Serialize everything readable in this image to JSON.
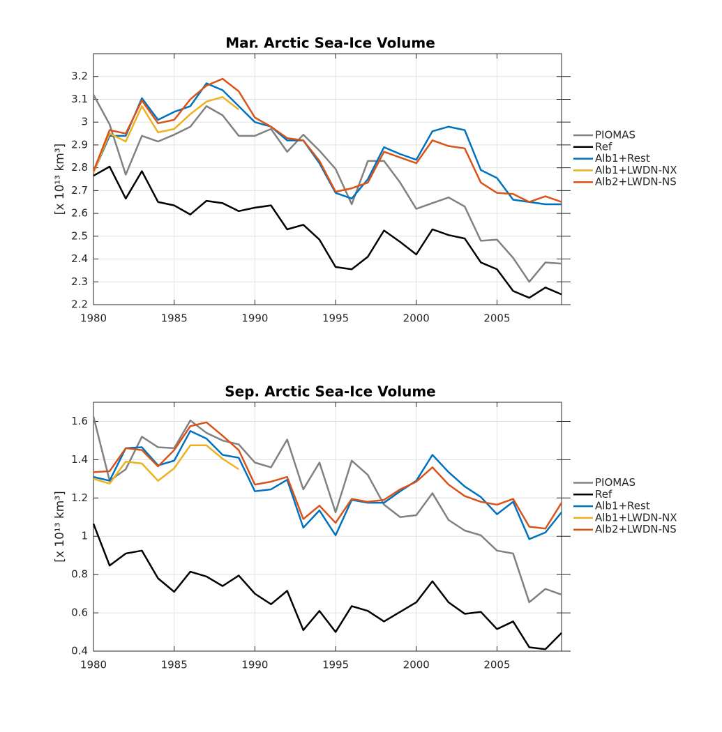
{
  "chart_data": [
    {
      "type": "line",
      "title": "Mar. Arctic Sea-Ice Volume",
      "ylabel": "[x 10¹³ km³]",
      "x": [
        1980,
        1981,
        1982,
        1983,
        1984,
        1985,
        1986,
        1987,
        1988,
        1989,
        1990,
        1991,
        1992,
        1993,
        1994,
        1995,
        1996,
        1997,
        1998,
        1999,
        2000,
        2001,
        2002,
        2003,
        2004,
        2005,
        2006,
        2007,
        2008,
        2009
      ],
      "xlim": [
        1980,
        2009
      ],
      "xticks": [
        1980,
        1985,
        1990,
        1995,
        2000,
        2005
      ],
      "ylim": [
        2.2,
        3.3
      ],
      "yticks": [
        2.2,
        2.3,
        2.4,
        2.5,
        2.6,
        2.7,
        2.8,
        2.9,
        3,
        3.1,
        3.2
      ],
      "grid": true,
      "legend": "eastoutside",
      "series": [
        {
          "name": "PIOMAS",
          "color": "#808080",
          "values": [
            3.12,
            2.99,
            2.77,
            2.94,
            2.915,
            2.945,
            2.98,
            3.07,
            3.03,
            2.94,
            2.94,
            2.97,
            2.87,
            2.945,
            2.875,
            2.795,
            2.64,
            2.83,
            2.83,
            2.735,
            2.62,
            2.645,
            2.67,
            2.63,
            2.48,
            2.485,
            2.405,
            2.3,
            2.385,
            2.38
          ]
        },
        {
          "name": "Ref",
          "color": "#000000",
          "values": [
            2.765,
            2.805,
            2.665,
            2.785,
            2.65,
            2.635,
            2.595,
            2.655,
            2.645,
            2.61,
            2.625,
            2.635,
            2.53,
            2.55,
            2.485,
            2.365,
            2.355,
            2.41,
            2.525,
            2.475,
            2.42,
            2.53,
            2.505,
            2.49,
            2.385,
            2.355,
            2.26,
            2.23,
            2.275,
            2.245
          ]
        },
        {
          "name": "Alb1+Rest",
          "color": "#0072BD",
          "values": [
            2.78,
            2.94,
            2.94,
            3.105,
            3.01,
            3.045,
            3.07,
            3.17,
            3.14,
            3.07,
            3.0,
            2.98,
            2.92,
            2.92,
            2.82,
            2.69,
            2.665,
            2.75,
            2.89,
            2.86,
            2.835,
            2.96,
            2.98,
            2.965,
            2.79,
            2.755,
            2.66,
            2.65,
            2.64,
            2.64
          ]
        },
        {
          "name": "Alb1+LWDN-NX",
          "color": "#EDB120",
          "values": [
            2.78,
            2.95,
            2.915,
            3.07,
            2.955,
            2.97,
            3.035,
            3.09,
            3.11,
            3.055,
            null,
            null,
            null,
            null,
            null,
            null,
            null,
            null,
            null,
            null,
            null,
            null,
            null,
            null,
            null,
            null,
            null,
            null,
            null,
            null
          ]
        },
        {
          "name": "Alb2+LWDN-NS",
          "color": "#D95319",
          "values": [
            2.785,
            2.965,
            2.95,
            3.095,
            2.995,
            3.01,
            3.1,
            3.16,
            3.19,
            3.135,
            3.02,
            2.98,
            2.93,
            2.92,
            2.83,
            2.695,
            2.71,
            2.735,
            2.87,
            2.845,
            2.82,
            2.92,
            2.895,
            2.885,
            2.735,
            2.69,
            2.685,
            2.65,
            2.675,
            2.65
          ]
        }
      ]
    },
    {
      "type": "line",
      "title": "Sep. Arctic Sea-Ice Volume",
      "ylabel": "[x 10¹³ km³]",
      "x": [
        1980,
        1981,
        1982,
        1983,
        1984,
        1985,
        1986,
        1987,
        1988,
        1989,
        1990,
        1991,
        1992,
        1993,
        1994,
        1995,
        1996,
        1997,
        1998,
        1999,
        2000,
        2001,
        2002,
        2003,
        2004,
        2005,
        2006,
        2007,
        2008,
        2009
      ],
      "xlim": [
        1980,
        2009
      ],
      "xticks": [
        1980,
        1985,
        1990,
        1995,
        2000,
        2005
      ],
      "ylim": [
        0.4,
        1.7
      ],
      "yticks": [
        0.4,
        0.6,
        0.8,
        1,
        1.2,
        1.4,
        1.6
      ],
      "grid": true,
      "legend": "eastoutside",
      "series": [
        {
          "name": "PIOMAS",
          "color": "#808080",
          "values": [
            1.625,
            1.29,
            1.35,
            1.52,
            1.465,
            1.46,
            1.605,
            1.54,
            1.5,
            1.48,
            1.385,
            1.36,
            1.505,
            1.245,
            1.385,
            1.125,
            1.395,
            1.32,
            1.165,
            1.1,
            1.11,
            1.225,
            1.085,
            1.03,
            1.005,
            0.925,
            0.91,
            0.655,
            0.725,
            0.695
          ]
        },
        {
          "name": "Ref",
          "color": "#000000",
          "values": [
            1.065,
            0.847,
            0.91,
            0.925,
            0.78,
            0.71,
            0.815,
            0.79,
            0.74,
            0.795,
            0.7,
            0.645,
            0.715,
            0.51,
            0.61,
            0.5,
            0.635,
            0.61,
            0.555,
            0.605,
            0.655,
            0.765,
            0.655,
            0.595,
            0.605,
            0.515,
            0.555,
            0.42,
            0.41,
            0.495
          ]
        },
        {
          "name": "Alb1+Rest",
          "color": "#0072BD",
          "values": [
            1.31,
            1.29,
            1.46,
            1.465,
            1.37,
            1.395,
            1.55,
            1.51,
            1.425,
            1.41,
            1.235,
            1.245,
            1.295,
            1.045,
            1.135,
            1.005,
            1.19,
            1.175,
            1.175,
            1.235,
            1.29,
            1.425,
            1.335,
            1.26,
            1.205,
            1.115,
            1.18,
            0.985,
            1.02,
            1.125
          ]
        },
        {
          "name": "Alb1+LWDN-NX",
          "color": "#EDB120",
          "values": [
            1.3,
            1.275,
            1.39,
            1.38,
            1.29,
            1.355,
            1.475,
            1.475,
            1.405,
            1.35,
            null,
            null,
            null,
            null,
            null,
            null,
            null,
            null,
            null,
            null,
            null,
            null,
            null,
            null,
            null,
            null,
            null,
            null,
            null,
            null
          ]
        },
        {
          "name": "Alb2+LWDN-NS",
          "color": "#D95319",
          "values": [
            1.335,
            1.34,
            1.46,
            1.45,
            1.365,
            1.45,
            1.575,
            1.595,
            1.525,
            1.45,
            1.27,
            1.285,
            1.31,
            1.09,
            1.16,
            1.07,
            1.195,
            1.18,
            1.19,
            1.245,
            1.285,
            1.36,
            1.27,
            1.21,
            1.18,
            1.165,
            1.195,
            1.05,
            1.04,
            1.175
          ]
        }
      ]
    }
  ]
}
